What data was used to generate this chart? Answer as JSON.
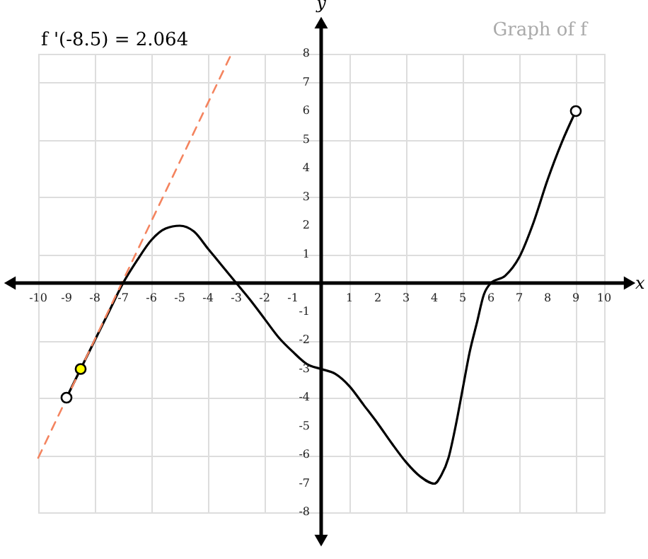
{
  "chart_data": {
    "type": "line",
    "annotations": [
      "f '(-8.5) = 2.064",
      "Graph of f"
    ],
    "xlabel": "x",
    "ylabel": "y",
    "xlim": [
      -10,
      10
    ],
    "ylim": [
      -8,
      8
    ],
    "xticks": [
      -10,
      -9,
      -8,
      -7,
      -6,
      -5,
      -4,
      -3,
      -2,
      -1,
      1,
      2,
      3,
      4,
      5,
      6,
      7,
      8,
      9,
      10
    ],
    "yticks": [
      -8,
      -7,
      -6,
      -5,
      -4,
      -3,
      -2,
      -1,
      1,
      2,
      3,
      4,
      5,
      6,
      7,
      8
    ],
    "grid": true,
    "series": [
      {
        "color": "#000000",
        "line_style": "solid",
        "x": [
          -9,
          -8.5,
          -8,
          -7.5,
          -7,
          -6.5,
          -6,
          -5.5,
          -5,
          -4.5,
          -4,
          -3.5,
          -3,
          -2.5,
          -2,
          -1.5,
          -1,
          -0.5,
          0,
          0.5,
          1,
          1.5,
          2,
          2.5,
          3,
          3.5,
          4,
          4.25,
          4.5,
          4.75,
          5,
          5.25,
          5.5,
          5.75,
          6,
          6.5,
          7,
          7.5,
          8,
          8.5,
          9
        ],
        "values": [
          -4,
          -3,
          -2,
          -1,
          0,
          0.8,
          1.5,
          1.9,
          2,
          1.8,
          1.2,
          0.6,
          0,
          -0.6,
          -1.25,
          -1.9,
          -2.4,
          -2.83,
          -3,
          -3.17,
          -3.6,
          -4.25,
          -4.9,
          -5.6,
          -6.25,
          -6.75,
          -7,
          -6.7,
          -6.1,
          -5,
          -3.7,
          -2.4,
          -1.4,
          -0.4,
          0,
          0.25,
          0.9,
          2.1,
          3.6,
          4.9,
          6
        ]
      },
      {
        "type": "line",
        "color": "#f4845f",
        "line_style": "dashed",
        "x": [
          -10,
          -3.17
        ],
        "values": [
          -6.1,
          8
        ]
      },
      {
        "type": "scatter",
        "color": "#ffffff",
        "marker": "circle",
        "x": [
          -9,
          9
        ],
        "values": [
          -4,
          6
        ]
      },
      {
        "type": "scatter",
        "color": "#ffff00",
        "marker": "circle",
        "x": [
          -8.5
        ],
        "values": [
          -3
        ]
      }
    ]
  }
}
